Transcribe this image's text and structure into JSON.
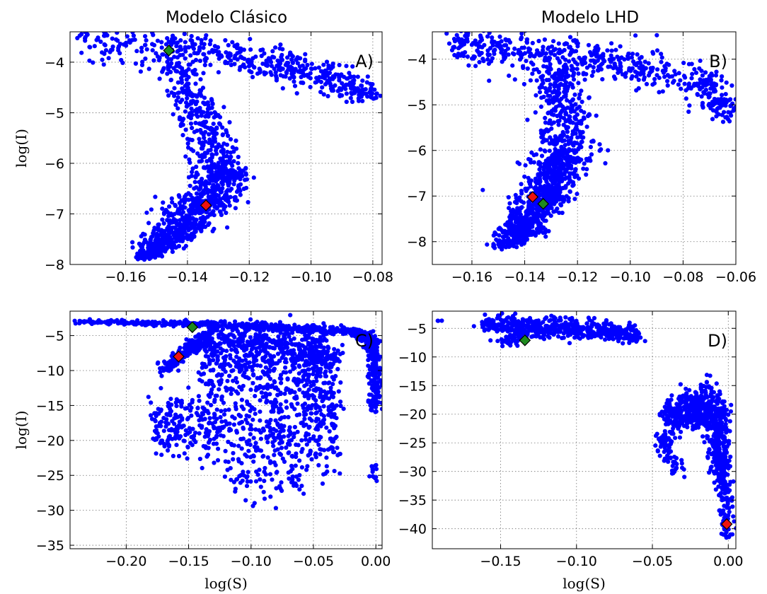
{
  "column_titles": [
    "Modelo Clásico",
    "Modelo LHD"
  ],
  "colors": {
    "points": "#0000ff",
    "marker_green": "#1f8a1f",
    "marker_red": "#ee1111",
    "marker_edge": "#000000"
  },
  "chart_data": [
    {
      "type": "scatter",
      "panel": "A)",
      "xlabel": "",
      "ylabel": "log(I)",
      "xlim": [
        -0.178,
        -0.077
      ],
      "ylim": [
        -8.0,
        -3.4
      ],
      "xticks": [
        -0.16,
        -0.14,
        -0.12,
        -0.1,
        -0.08
      ],
      "xtick_labels": [
        "−0.16",
        "−0.14",
        "−0.12",
        "−0.10",
        "−0.08"
      ],
      "yticks": [
        -8,
        -7,
        -6,
        -5,
        -4
      ],
      "ytick_labels": [
        "−8",
        "−7",
        "−6",
        "−5",
        "−4"
      ],
      "grid": true,
      "clouds": [
        {
          "x": [
            -0.175,
            -0.15,
            -0.13,
            -0.11,
            -0.095,
            -0.08
          ],
          "y": [
            -3.55,
            -3.65,
            -3.85,
            -4.05,
            -4.3,
            -4.65
          ],
          "spread": [
            0.25,
            0.2,
            0.15,
            0.16,
            0.15,
            0.1
          ],
          "n": 520
        },
        {
          "x": [
            -0.145,
            -0.138,
            -0.133,
            -0.13,
            -0.128
          ],
          "y": [
            -4.0,
            -4.8,
            -5.5,
            -6.0,
            -6.3
          ],
          "spread": [
            0.004,
            0.004,
            0.004,
            0.004,
            0.004
          ],
          "n": 380
        },
        {
          "x": [
            -0.128,
            -0.134,
            -0.14,
            -0.147,
            -0.154
          ],
          "y": [
            -6.2,
            -6.75,
            -7.2,
            -7.55,
            -7.85
          ],
          "spread": [
            0.004,
            0.005,
            0.005,
            0.004,
            0.002
          ],
          "n": 720
        }
      ],
      "markers": [
        {
          "x": -0.146,
          "y": -3.77,
          "color": "green"
        },
        {
          "x": -0.134,
          "y": -6.83,
          "color": "red"
        }
      ]
    },
    {
      "type": "scatter",
      "panel": "B)",
      "xlabel": "",
      "ylabel": "",
      "xlim": [
        -0.175,
        -0.06
      ],
      "ylim": [
        -8.5,
        -3.4
      ],
      "xticks": [
        -0.16,
        -0.14,
        -0.12,
        -0.1,
        -0.08,
        -0.06
      ],
      "xtick_labels": [
        "−0.16",
        "−0.14",
        "−0.12",
        "−0.10",
        "−0.08",
        "−0.06"
      ],
      "yticks": [
        -8,
        -7,
        -6,
        -5,
        -4
      ],
      "ytick_labels": [
        "−8",
        "−7",
        "−6",
        "−5",
        "−4"
      ],
      "grid": true,
      "clouds": [
        {
          "x": [
            -0.167,
            -0.15,
            -0.13,
            -0.11,
            -0.09,
            -0.07,
            -0.062
          ],
          "y": [
            -3.65,
            -3.8,
            -3.95,
            -4.05,
            -4.25,
            -4.6,
            -5.2
          ],
          "spread": [
            0.2,
            0.22,
            0.2,
            0.18,
            0.2,
            0.25,
            0.15
          ],
          "n": 560
        },
        {
          "x": [
            -0.128,
            -0.126,
            -0.125,
            -0.125,
            -0.126
          ],
          "y": [
            -4.2,
            -4.8,
            -5.4,
            -5.9,
            -6.3
          ],
          "spread": [
            0.005,
            0.005,
            0.005,
            0.006,
            0.006
          ],
          "n": 380
        },
        {
          "x": [
            -0.126,
            -0.131,
            -0.136,
            -0.141,
            -0.147
          ],
          "y": [
            -6.2,
            -6.8,
            -7.3,
            -7.75,
            -8.1
          ],
          "spread": [
            0.005,
            0.005,
            0.005,
            0.004,
            0.003
          ],
          "n": 720
        }
      ],
      "markers": [
        {
          "x": -0.137,
          "y": -7.02,
          "color": "red"
        },
        {
          "x": -0.133,
          "y": -7.17,
          "color": "green"
        }
      ]
    },
    {
      "type": "scatter",
      "panel": "C)",
      "xlabel": "log(S)",
      "ylabel": "log(I)",
      "xlim": [
        -0.245,
        0.005
      ],
      "ylim": [
        -35.5,
        -1.5
      ],
      "xticks": [
        -0.2,
        -0.15,
        -0.1,
        -0.05,
        0.0
      ],
      "xtick_labels": [
        "−0.20",
        "−0.15",
        "−0.10",
        "−0.05",
        "0.00"
      ],
      "yticks": [
        -35,
        -30,
        -25,
        -20,
        -15,
        -10,
        -5
      ],
      "ytick_labels": [
        "−35",
        "−30",
        "−25",
        "−20",
        "−15",
        "−10",
        "−5"
      ],
      "grid": true,
      "clouds": [
        {
          "x": [
            -0.24,
            -0.15,
            -0.08,
            -0.02,
            -0.005,
            -0.001
          ],
          "y": [
            -3.0,
            -3.3,
            -3.8,
            -4.4,
            -5.5,
            -8.0
          ],
          "spread": [
            0.15,
            0.2,
            0.25,
            0.25,
            0.4,
            0.5
          ],
          "n": 620
        },
        {
          "x": [
            -0.001,
            -0.001
          ],
          "y": [
            -8.0,
            -16.0
          ],
          "spread": [
            0.3,
            0.3
          ],
          "n": 120
        },
        {
          "x": [
            -0.172,
            -0.16,
            -0.15,
            -0.142
          ],
          "y": [
            -10.0,
            -8.5,
            -7.0,
            -5.5
          ],
          "spread": [
            0.4,
            0.5,
            0.5,
            0.4
          ],
          "n": 160
        },
        {
          "x": [
            -0.14,
            -0.1,
            -0.06,
            -0.03
          ],
          "y": [
            -5.5,
            -6.0,
            -7.0,
            -8.5
          ],
          "spread": [
            1.0,
            1.4,
            1.6,
            1.6
          ],
          "n": 520
        },
        {
          "x": [
            -0.14,
            -0.1,
            -0.06,
            -0.03
          ],
          "y": [
            -9.0,
            -11.0,
            -13.0,
            -15.0
          ],
          "spread": [
            2.0,
            2.5,
            2.8,
            2.5
          ],
          "n": 380
        },
        {
          "x": [
            -0.18,
            -0.15,
            -0.12,
            -0.09,
            -0.06,
            -0.03
          ],
          "y": [
            -18.0,
            -17.5,
            -18.5,
            -19.5,
            -20.0,
            -20.5
          ],
          "spread": [
            2.2,
            2.4,
            2.6,
            3.0,
            3.0,
            2.5
          ],
          "n": 520
        },
        {
          "x": [
            -0.12,
            -0.1,
            -0.08,
            -0.06
          ],
          "y": [
            -24.5,
            -26.5,
            -27.5,
            -26.0
          ],
          "spread": [
            1.2,
            1.5,
            1.5,
            1.2
          ],
          "n": 45
        },
        {
          "x": [
            -0.001,
            -0.001
          ],
          "y": [
            -23.5,
            -25.5
          ],
          "spread": [
            0.4,
            0.4
          ],
          "n": 14
        }
      ],
      "markers": [
        {
          "x": -0.147,
          "y": -3.8,
          "color": "green"
        },
        {
          "x": -0.158,
          "y": -8.0,
          "color": "red"
        }
      ]
    },
    {
      "type": "scatter",
      "panel": "D)",
      "xlabel": "log(S)",
      "ylabel": "",
      "xlim": [
        -0.195,
        0.005
      ],
      "ylim": [
        -43.5,
        -2.0
      ],
      "xticks": [
        -0.15,
        -0.1,
        -0.05,
        0.0
      ],
      "xtick_labels": [
        "−0.15",
        "−0.10",
        "−0.05",
        "0.00"
      ],
      "yticks": [
        -40,
        -35,
        -30,
        -25,
        -20,
        -15,
        -10,
        -5
      ],
      "ytick_labels": [
        "−40",
        "−35",
        "−30",
        "−25",
        "−20",
        "−15",
        "−10",
        "−5"
      ],
      "grid": true,
      "clouds": [
        {
          "x": [
            -0.162,
            -0.14,
            -0.12,
            -0.1,
            -0.08,
            -0.06
          ],
          "y": [
            -4.2,
            -4.5,
            -4.9,
            -5.2,
            -5.6,
            -6.2
          ],
          "spread": [
            0.5,
            0.8,
            0.9,
            0.9,
            0.9,
            0.7
          ],
          "n": 520
        },
        {
          "x": [
            -0.15,
            -0.14,
            -0.134
          ],
          "y": [
            -7.5,
            -6.8,
            -6.0
          ],
          "spread": [
            0.5,
            0.5,
            0.5
          ],
          "n": 70
        },
        {
          "x": [
            -0.04,
            -0.03,
            -0.02,
            -0.012,
            -0.006,
            -0.002
          ],
          "y": [
            -20.5,
            -19.5,
            -19.0,
            -19.5,
            -21.0,
            -24.0
          ],
          "spread": [
            1.3,
            1.6,
            1.8,
            2.2,
            2.8,
            3.2
          ],
          "n": 620
        },
        {
          "x": [
            -0.01,
            -0.006,
            -0.003
          ],
          "y": [
            -25.0,
            -28.0,
            -30.5
          ],
          "spread": [
            2.0,
            2.0,
            1.8
          ],
          "n": 160
        },
        {
          "x": [
            -0.045,
            -0.04,
            -0.032
          ],
          "y": [
            -23.0,
            -26.5,
            -29.5
          ],
          "spread": [
            1.8,
            1.8,
            1.6
          ],
          "n": 70
        },
        {
          "x": [
            -0.001,
            -0.001
          ],
          "y": [
            -31.0,
            -42.0
          ],
          "spread": [
            0.3,
            0.3
          ],
          "n": 80
        },
        {
          "x": [
            -0.19,
            -0.189
          ],
          "y": [
            -3.5,
            -3.8
          ],
          "spread": [
            0.1,
            0.1
          ],
          "n": 3
        }
      ],
      "markers": [
        {
          "x": -0.134,
          "y": -7.1,
          "color": "green"
        },
        {
          "x": -0.001,
          "y": -39.2,
          "color": "red"
        }
      ]
    }
  ]
}
